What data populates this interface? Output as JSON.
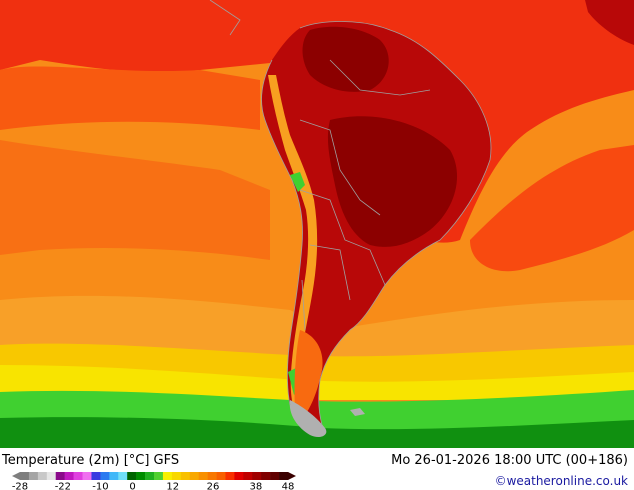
{
  "header": {
    "title": "Temperature (2m) [°C] GFS",
    "valid_time": "Mo 26-01-2026 18:00 UTC (00+186)",
    "credit": "©weatheronline.co.uk"
  },
  "legend": {
    "tick_labels": [
      "-28",
      "-22",
      "-10",
      "0",
      "12",
      "26",
      "38",
      "48"
    ],
    "colors": [
      "#7e7e7e",
      "#a4a4a4",
      "#c8c8c8",
      "#e6e6e6",
      "#8a0a8a",
      "#c018c0",
      "#e040e0",
      "#f070f0",
      "#3a3ae0",
      "#2a7af0",
      "#40b8f8",
      "#70e0f8",
      "#006400",
      "#008c00",
      "#20b020",
      "#50d030",
      "#f8f000",
      "#f8d800",
      "#f8c000",
      "#f8a800",
      "#f89000",
      "#f87800",
      "#f86000",
      "#f83000",
      "#e00000",
      "#c00000",
      "#a00000",
      "#800000",
      "#600000",
      "#3a0000"
    ]
  },
  "colors": {
    "ocean_orange": "#f88c18",
    "ocean_dark_orange": "#f86a10",
    "ocean_red": "#f03010",
    "land_red": "#b80808",
    "land_dark_red": "#8c0000",
    "andes": "#f8a020",
    "southern_yellow": "#f8d000",
    "southern_green": "#20c020",
    "antarctic_green": "#109010"
  }
}
